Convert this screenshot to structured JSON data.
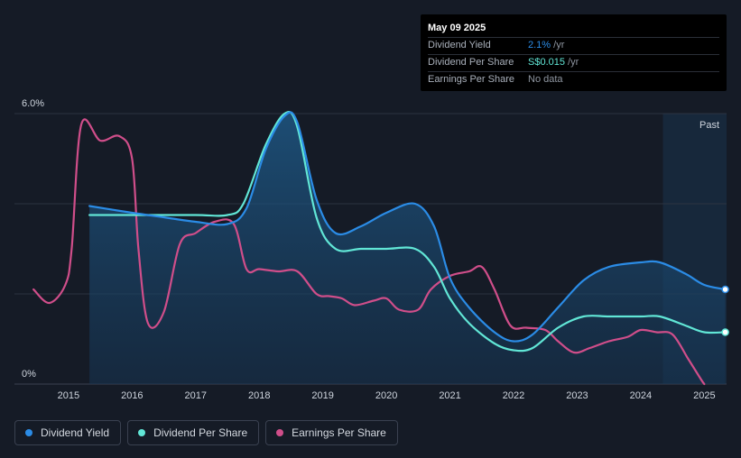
{
  "tooltip": {
    "date": "May 09 2025",
    "rows": [
      {
        "label": "Dividend Yield",
        "value": "2.1%",
        "unit": " /yr",
        "color": "#2b8ce6"
      },
      {
        "label": "Dividend Per Share",
        "value": "S$0.015",
        "unit": " /yr",
        "color": "#61e6d6"
      },
      {
        "label": "Earnings Per Share",
        "value": "No data",
        "unit": "",
        "color": "#8f96a1"
      }
    ]
  },
  "legend": [
    {
      "label": "Dividend Yield",
      "color": "#2b8ce6"
    },
    {
      "label": "Dividend Per Share",
      "color": "#61e6d6"
    },
    {
      "label": "Earnings Per Share",
      "color": "#d04e8a"
    }
  ],
  "chart_data": {
    "type": "line",
    "x_ticks": [
      "2015",
      "2016",
      "2017",
      "2018",
      "2019",
      "2020",
      "2021",
      "2022",
      "2023",
      "2024",
      "2025"
    ],
    "y_ticks": [
      "6.0%",
      "0%"
    ],
    "ylim": [
      0,
      6.0
    ],
    "xlim": [
      2014.15,
      2025.35
    ],
    "past_label": "Past",
    "past_start": 2024.35,
    "grid": true,
    "legend_position": "bottom-left",
    "series": [
      {
        "name": "Dividend Yield",
        "color": "#2b8ce6",
        "points": [
          [
            2015.33,
            3.95
          ],
          [
            2016.0,
            3.8
          ],
          [
            2016.5,
            3.7
          ],
          [
            2017.0,
            3.6
          ],
          [
            2017.5,
            3.55
          ],
          [
            2017.8,
            3.9
          ],
          [
            2018.1,
            5.2
          ],
          [
            2018.4,
            5.95
          ],
          [
            2018.6,
            5.8
          ],
          [
            2018.9,
            4.1
          ],
          [
            2019.2,
            3.35
          ],
          [
            2019.6,
            3.5
          ],
          [
            2020.0,
            3.8
          ],
          [
            2020.45,
            4.0
          ],
          [
            2020.75,
            3.5
          ],
          [
            2021.0,
            2.35
          ],
          [
            2021.3,
            1.7
          ],
          [
            2021.7,
            1.15
          ],
          [
            2022.0,
            0.95
          ],
          [
            2022.3,
            1.1
          ],
          [
            2022.7,
            1.7
          ],
          [
            2023.1,
            2.3
          ],
          [
            2023.5,
            2.6
          ],
          [
            2024.0,
            2.7
          ],
          [
            2024.3,
            2.7
          ],
          [
            2024.7,
            2.45
          ],
          [
            2025.0,
            2.2
          ],
          [
            2025.33,
            2.1
          ]
        ]
      },
      {
        "name": "Dividend Per Share",
        "color": "#61e6d6",
        "points": [
          [
            2015.33,
            3.75
          ],
          [
            2016.0,
            3.75
          ],
          [
            2017.0,
            3.75
          ],
          [
            2017.5,
            3.75
          ],
          [
            2017.75,
            4.0
          ],
          [
            2018.1,
            5.3
          ],
          [
            2018.4,
            6.0
          ],
          [
            2018.6,
            5.7
          ],
          [
            2018.9,
            3.7
          ],
          [
            2019.2,
            3.0
          ],
          [
            2019.6,
            3.0
          ],
          [
            2020.0,
            3.0
          ],
          [
            2020.45,
            3.0
          ],
          [
            2020.75,
            2.6
          ],
          [
            2021.0,
            1.9
          ],
          [
            2021.3,
            1.35
          ],
          [
            2021.7,
            0.9
          ],
          [
            2022.0,
            0.75
          ],
          [
            2022.3,
            0.8
          ],
          [
            2022.7,
            1.25
          ],
          [
            2023.1,
            1.5
          ],
          [
            2023.5,
            1.5
          ],
          [
            2024.0,
            1.5
          ],
          [
            2024.3,
            1.5
          ],
          [
            2024.7,
            1.3
          ],
          [
            2025.0,
            1.15
          ],
          [
            2025.33,
            1.15
          ]
        ]
      },
      {
        "name": "Earnings Per Share",
        "color": "#d04e8a",
        "points": [
          [
            2014.45,
            2.1
          ],
          [
            2014.7,
            1.8
          ],
          [
            2014.95,
            2.2
          ],
          [
            2015.05,
            3.0
          ],
          [
            2015.2,
            5.75
          ],
          [
            2015.5,
            5.4
          ],
          [
            2015.8,
            5.5
          ],
          [
            2016.0,
            5.0
          ],
          [
            2016.1,
            3.0
          ],
          [
            2016.25,
            1.35
          ],
          [
            2016.5,
            1.6
          ],
          [
            2016.75,
            3.1
          ],
          [
            2017.0,
            3.35
          ],
          [
            2017.3,
            3.6
          ],
          [
            2017.6,
            3.55
          ],
          [
            2017.8,
            2.55
          ],
          [
            2018.0,
            2.55
          ],
          [
            2018.3,
            2.5
          ],
          [
            2018.6,
            2.5
          ],
          [
            2018.9,
            2.0
          ],
          [
            2019.1,
            1.95
          ],
          [
            2019.3,
            1.9
          ],
          [
            2019.5,
            1.75
          ],
          [
            2019.8,
            1.85
          ],
          [
            2020.0,
            1.9
          ],
          [
            2020.2,
            1.65
          ],
          [
            2020.5,
            1.65
          ],
          [
            2020.7,
            2.1
          ],
          [
            2021.0,
            2.4
          ],
          [
            2021.3,
            2.5
          ],
          [
            2021.5,
            2.6
          ],
          [
            2021.7,
            2.1
          ],
          [
            2021.95,
            1.3
          ],
          [
            2022.2,
            1.25
          ],
          [
            2022.5,
            1.2
          ],
          [
            2022.7,
            0.95
          ],
          [
            2022.95,
            0.7
          ],
          [
            2023.2,
            0.8
          ],
          [
            2023.5,
            0.95
          ],
          [
            2023.8,
            1.05
          ],
          [
            2024.0,
            1.2
          ],
          [
            2024.25,
            1.15
          ],
          [
            2024.5,
            1.1
          ],
          [
            2024.75,
            0.55
          ],
          [
            2024.95,
            0.1
          ],
          [
            2025.0,
            0.0
          ]
        ]
      }
    ]
  }
}
